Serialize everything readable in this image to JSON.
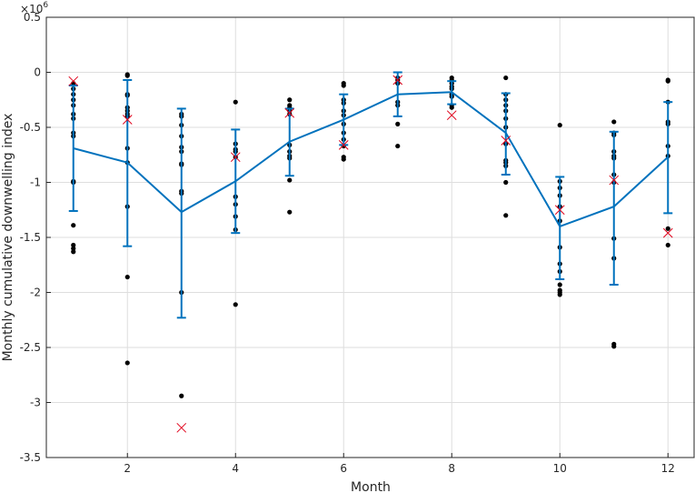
{
  "chart_data": {
    "type": "scatter",
    "title": "",
    "xlabel": "Month",
    "ylabel": "Monthly cumulative downwelling index",
    "y_exponent_base": "10",
    "y_exponent_power": "6",
    "xlim": [
      0.5,
      12.5
    ],
    "ylim": [
      -3.5,
      0.5
    ],
    "grid": true,
    "legend": "none",
    "x_ticks": [
      2,
      4,
      6,
      8,
      10,
      12
    ],
    "x_tick_labels": [
      "2",
      "4",
      "6",
      "8",
      "10",
      "12"
    ],
    "y_ticks": [
      -3.5,
      -3,
      -2.5,
      -2,
      -1.5,
      -1,
      -0.5,
      0,
      0.5
    ],
    "y_tick_labels": [
      "-3.5",
      "-3",
      "-2.5",
      "-2",
      "-1.5",
      "-1",
      "-0.5",
      "0",
      "0.5"
    ],
    "mean_line": {
      "color": "#0072bd",
      "x": [
        1,
        2,
        3,
        4,
        5,
        6,
        7,
        8,
        9,
        10,
        11,
        12
      ],
      "y": [
        -0.69,
        -0.82,
        -1.27,
        -0.99,
        -0.63,
        -0.43,
        -0.2,
        -0.18,
        -0.55,
        -1.4,
        -1.22,
        -0.77
      ],
      "err_low": [
        -1.26,
        -1.58,
        -2.23,
        -1.46,
        -0.94,
        -0.66,
        -0.4,
        -0.29,
        -0.93,
        -1.88,
        -1.93,
        -1.28
      ],
      "err_high": [
        -0.12,
        -0.07,
        -0.33,
        -0.52,
        -0.33,
        -0.2,
        0.0,
        -0.08,
        -0.19,
        -0.95,
        -0.54,
        -0.27
      ]
    },
    "observations": {
      "color": "#000000",
      "points": [
        {
          "month": 1,
          "values": [
            -0.1,
            -0.15,
            -0.2,
            -0.25,
            -0.3,
            -0.38,
            -0.42,
            -0.55,
            -0.58,
            -0.99,
            -1.0,
            -1.39,
            -1.57,
            -1.6,
            -1.63
          ]
        },
        {
          "month": 2,
          "values": [
            -0.02,
            -0.03,
            -0.2,
            -0.21,
            -0.32,
            -0.35,
            -0.38,
            -0.4,
            -0.69,
            -0.82,
            -1.22,
            -1.86,
            -2.64
          ]
        },
        {
          "month": 3,
          "values": [
            -0.38,
            -0.4,
            -0.48,
            -0.58,
            -0.68,
            -0.72,
            -0.83,
            -0.84,
            -1.08,
            -1.1,
            -2.0,
            -2.94
          ]
        },
        {
          "month": 4,
          "values": [
            -0.27,
            -0.65,
            -0.7,
            -0.72,
            -0.77,
            -1.13,
            -1.2,
            -1.31,
            -1.43,
            -2.11
          ]
        },
        {
          "month": 5,
          "values": [
            -0.25,
            -0.3,
            -0.32,
            -0.35,
            -0.38,
            -0.66,
            -0.72,
            -0.76,
            -0.78,
            -0.98,
            -1.27
          ]
        },
        {
          "month": 6,
          "values": [
            -0.1,
            -0.12,
            -0.25,
            -0.28,
            -0.35,
            -0.39,
            -0.47,
            -0.55,
            -0.61,
            -0.67,
            -0.77,
            -0.79
          ]
        },
        {
          "month": 7,
          "values": [
            -0.05,
            -0.07,
            -0.1,
            -0.27,
            -0.3,
            -0.47,
            -0.67
          ]
        },
        {
          "month": 8,
          "values": [
            -0.05,
            -0.07,
            -0.1,
            -0.13,
            -0.15,
            -0.2,
            -0.22,
            -0.3,
            -0.32
          ]
        },
        {
          "month": 9,
          "values": [
            -0.05,
            -0.2,
            -0.25,
            -0.3,
            -0.35,
            -0.42,
            -0.5,
            -0.65,
            -0.8,
            -0.82,
            -0.85,
            -1.0,
            -1.3
          ]
        },
        {
          "month": 10,
          "values": [
            -0.48,
            -0.99,
            -1.05,
            -1.12,
            -1.22,
            -1.35,
            -1.59,
            -1.74,
            -1.81,
            -1.93,
            -1.98,
            -2.0,
            -2.02
          ]
        },
        {
          "month": 11,
          "values": [
            -0.45,
            -0.55,
            -0.57,
            -0.72,
            -0.76,
            -0.78,
            -0.93,
            -1.0,
            -1.51,
            -1.69,
            -2.47,
            -2.49
          ]
        },
        {
          "month": 12,
          "values": [
            -0.07,
            -0.08,
            -0.27,
            -0.45,
            -0.47,
            -0.67,
            -0.76,
            -1.42,
            -1.57
          ]
        }
      ]
    },
    "reference_markers": {
      "color": "#e0001a",
      "marker": "x",
      "x": [
        1,
        2,
        3,
        4,
        5,
        6,
        7,
        8,
        9,
        10,
        11,
        12
      ],
      "y": [
        -0.08,
        -0.43,
        -3.23,
        -0.77,
        -0.37,
        -0.66,
        -0.07,
        -0.39,
        -0.62,
        -1.25,
        -0.98,
        -1.46
      ]
    }
  }
}
